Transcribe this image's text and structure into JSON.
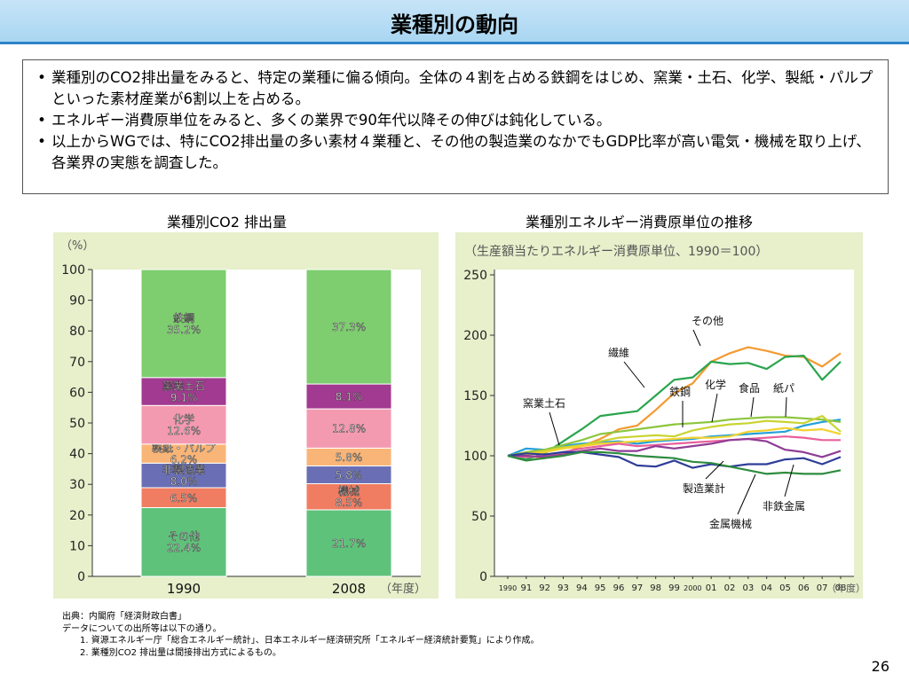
{
  "slide": {
    "title": "業種別の動向",
    "bullets": [
      "業種別のCO2排出量をみると、特定の業種に偏る傾向。全体の４割を占める鉄鋼をはじめ、窯業・土石、化学、製紙・パルプといった素材産業が6割以上を占める。",
      "エネルギー消費原単位をみると、多くの業界で90年代以降その伸びは鈍化している。",
      "以上からWGでは、特にCO2排出量の多い素材４業種と、その他の製造業のなかでもGDP比率が高い電気・機械を取り上げ、各業界の実態を調査した。"
    ],
    "bullet_marker": "•",
    "notes": {
      "source": "出典：内閣府「経済財政白書」",
      "data_line": "データについての出所等は以下の通り。",
      "items": [
        "1. 資源エネルギー庁「総合エネルギー統計」、日本エネルギー経済研究所「エネルギー経済統計要覧」により作成。",
        "2. 業種別CO2 排出量は間接排出方式によるもの。"
      ]
    },
    "page_number": "26"
  },
  "chart_data": [
    {
      "type": "bar",
      "stacked": true,
      "title": "業種別CO2 排出量",
      "unit_label": "（%）",
      "xlabel": "（年度）",
      "categories": [
        "1990",
        "2008"
      ],
      "ylim": [
        0,
        100
      ],
      "yticks": [
        0,
        10,
        20,
        30,
        40,
        50,
        60,
        70,
        80,
        90,
        100
      ],
      "grid": false,
      "series": [
        {
          "name": "その他",
          "values": [
            22.4,
            21.7
          ],
          "labels": [
            "その他\n22.4%",
            "21.7%"
          ],
          "color": "#5fc27b"
        },
        {
          "name": "機械",
          "values": [
            6.5,
            8.5
          ],
          "labels": [
            "6.5%",
            "機械\n8.5%"
          ],
          "color": "#f07d62"
        },
        {
          "name": "非製造業",
          "values": [
            8.0,
            5.8
          ],
          "labels": [
            "非製造業\n8.0%",
            "5.8%"
          ],
          "color": "#6a6fb5"
        },
        {
          "name": "製紙・パルプ",
          "values": [
            6.2,
            5.8
          ],
          "labels": [
            "製紙・パルプ\n6.2%",
            "5.8%"
          ],
          "color": "#f9b577"
        },
        {
          "name": "化学",
          "values": [
            12.6,
            12.8
          ],
          "labels": [
            "化学\n12.6%",
            "12.8%"
          ],
          "color": "#f49ab0"
        },
        {
          "name": "窯業土石",
          "values": [
            9.1,
            8.1
          ],
          "labels": [
            "窯業土石\n9.1%",
            "8.1%"
          ],
          "color": "#a13a90"
        },
        {
          "name": "鉄鋼",
          "values": [
            35.2,
            37.3
          ],
          "labels": [
            "鉄鋼\n35.2%",
            "37.3%"
          ],
          "color": "#7ece6f"
        }
      ]
    },
    {
      "type": "line",
      "title": "業種別エネルギー消費原単位の推移",
      "unit_label": "（生産額当たりエネルギー消費原単位、1990＝100）",
      "xlabel": "（年度）",
      "x": [
        "1990",
        "91",
        "92",
        "93",
        "94",
        "95",
        "96",
        "97",
        "98",
        "99",
        "2000",
        "01",
        "02",
        "03",
        "04",
        "05",
        "06",
        "07",
        "08"
      ],
      "ylim": [
        0,
        250
      ],
      "yticks": [
        0,
        50,
        100,
        150,
        200,
        250
      ],
      "grid": false,
      "series": [
        {
          "name": "その他",
          "color": "#f39a30",
          "values": [
            100,
            100,
            98,
            102,
            108,
            114,
            122,
            125,
            138,
            152,
            160,
            178,
            185,
            190,
            187,
            183,
            182,
            174,
            185
          ]
        },
        {
          "name": "繊維",
          "color": "#2aa54e",
          "values": [
            100,
            97,
            102,
            112,
            122,
            133,
            135,
            137,
            150,
            163,
            165,
            178,
            176,
            177,
            172,
            182,
            183,
            163,
            178
          ]
        },
        {
          "name": "窯業土石",
          "color": "#24a0d8",
          "values": [
            100,
            106,
            105,
            108,
            110,
            111,
            112,
            110,
            112,
            113,
            114,
            116,
            117,
            118,
            119,
            120,
            125,
            128,
            130
          ]
        },
        {
          "name": "食品",
          "color": "#8cc63e",
          "values": [
            100,
            103,
            105,
            109,
            113,
            118,
            120,
            122,
            124,
            126,
            127,
            128,
            130,
            131,
            132,
            132,
            131,
            130,
            128
          ]
        },
        {
          "name": "紙パ",
          "color": "#c9d430",
          "values": [
            100,
            102,
            104,
            107,
            109,
            112,
            115,
            116,
            117,
            116,
            121,
            124,
            126,
            127,
            129,
            128,
            127,
            133,
            120
          ]
        },
        {
          "name": "化学",
          "color": "#f4d22f",
          "values": [
            100,
            101,
            103,
            106,
            108,
            110,
            111,
            112,
            113,
            114,
            115,
            115,
            116,
            120,
            121,
            123,
            121,
            122,
            118
          ]
        },
        {
          "name": "鉄鋼",
          "color": "#e8609c",
          "values": [
            100,
            99,
            100,
            103,
            106,
            108,
            110,
            108,
            109,
            110,
            111,
            112,
            113,
            114,
            115,
            116,
            115,
            113,
            113
          ]
        },
        {
          "name": "非鉄金属",
          "color": "#8f3d96",
          "values": [
            100,
            100,
            99,
            101,
            104,
            106,
            104,
            104,
            108,
            106,
            108,
            110,
            113,
            114,
            112,
            105,
            103,
            99,
            104
          ]
        },
        {
          "name": "製造業計",
          "color": "#2f3d97",
          "values": [
            100,
            102,
            101,
            103,
            103,
            101,
            99,
            92,
            91,
            96,
            90,
            93,
            91,
            93,
            93,
            97,
            98,
            93,
            99
          ]
        },
        {
          "name": "金属機械",
          "color": "#2e8c3e",
          "values": [
            100,
            96,
            98,
            100,
            103,
            103,
            102,
            100,
            99,
            98,
            95,
            94,
            91,
            88,
            85,
            86,
            85,
            85,
            88
          ]
        }
      ],
      "annotations": [
        "その他",
        "繊維",
        "窯業土石",
        "鉄鋼",
        "化学",
        "食品",
        "紙パ",
        "製造業計",
        "非鉄金属",
        "金属機械"
      ]
    }
  ]
}
